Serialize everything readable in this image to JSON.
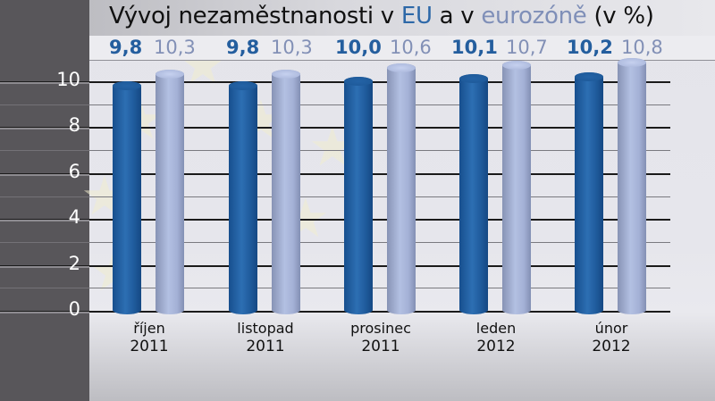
{
  "chart_data": {
    "type": "bar",
    "title": "Vývoj nezaměstnanosti v EU a v eurozóně (v %)",
    "title_parts": {
      "prefix": "Vývoj nezaměstnanosti v ",
      "eu": "EU",
      "middle": " a v ",
      "ez": "eurozóně",
      "suffix": " (v %)"
    },
    "categories": [
      "říjen 2011",
      "listopad 2011",
      "prosinec 2011",
      "leden 2012",
      "únor 2012"
    ],
    "category_lines": [
      {
        "month": "říjen",
        "year": "2011"
      },
      {
        "month": "listopad",
        "year": "2011"
      },
      {
        "month": "prosinec",
        "year": "2011"
      },
      {
        "month": "leden",
        "year": "2012"
      },
      {
        "month": "únor",
        "year": "2012"
      }
    ],
    "series": [
      {
        "name": "EU",
        "color": "#245e9e",
        "values": [
          9.8,
          9.8,
          10.0,
          10.1,
          10.2
        ],
        "labels": [
          "9,8",
          "9,8",
          "10,0",
          "10,1",
          "10,2"
        ]
      },
      {
        "name": "eurozóna",
        "color": "#8290b6",
        "values": [
          10.3,
          10.3,
          10.6,
          10.7,
          10.8
        ],
        "labels": [
          "10,3",
          "10,3",
          "10,6",
          "10,7",
          "10,8"
        ]
      }
    ],
    "yticks": [
      "0",
      "2",
      "4",
      "6",
      "8",
      "10"
    ],
    "ylim": [
      0,
      10.8
    ],
    "xlabel": "",
    "ylabel": "",
    "grid": true,
    "legend": "in title (colored words)"
  }
}
